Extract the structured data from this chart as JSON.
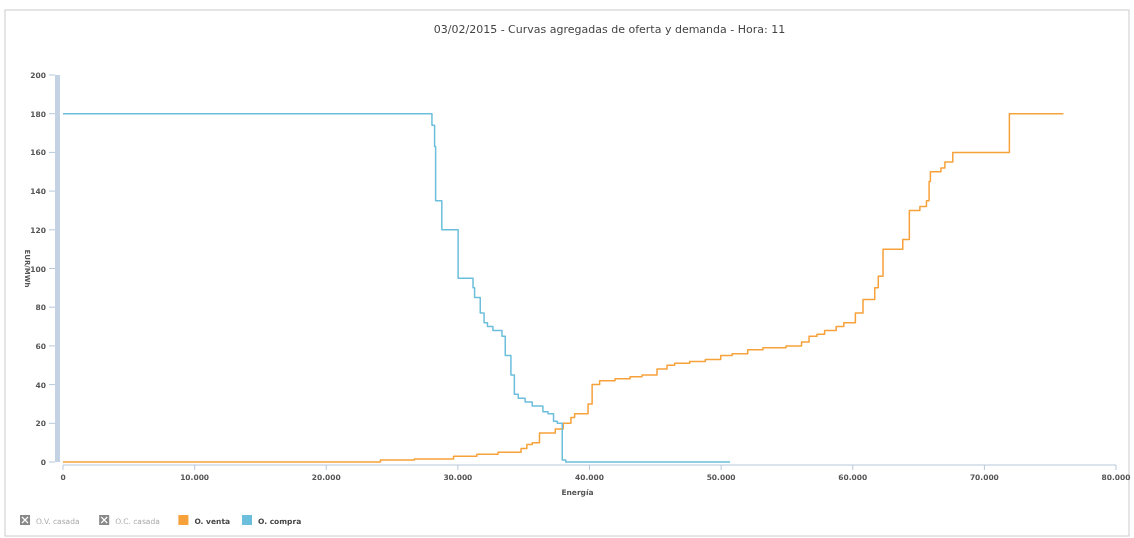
{
  "chart_data": {
    "type": "step",
    "title": "03/02/2015 - Curvas agregadas de oferta y demanda - Hora: 11",
    "xlabel": "Energía",
    "ylabel": "EUR/MWh",
    "xlim": [
      0,
      80000
    ],
    "xticks": [
      {
        "value": 0,
        "label": "0"
      },
      {
        "value": 10000,
        "label": "10.000"
      },
      {
        "value": 20000,
        "label": "20.000"
      },
      {
        "value": 30000,
        "label": "30.000"
      },
      {
        "value": 40000,
        "label": "40.000"
      },
      {
        "value": 50000,
        "label": "50.000"
      },
      {
        "value": 60000,
        "label": "60.000"
      },
      {
        "value": 70000,
        "label": "70.000"
      },
      {
        "value": 80000,
        "label": "80.000"
      }
    ],
    "ylim": [
      0,
      200
    ],
    "yticks": [
      0,
      20,
      40,
      60,
      80,
      100,
      120,
      140,
      160,
      180,
      200
    ],
    "grid": false,
    "legend": "bottom left",
    "line_style": "solid",
    "marker": "none",
    "series": [
      {
        "name": "O.V. casada",
        "color": "#888888"
      },
      {
        "name": "O.C. casada",
        "color": "#888888"
      },
      {
        "name": "O. venta",
        "color": "#f7a13a",
        "x": [
          0,
          24120,
          26700,
          29670,
          31440,
          33050,
          34800,
          35240,
          35650,
          36200,
          37400,
          38000,
          38590,
          38870,
          39890,
          40200,
          40770,
          41940,
          43080,
          43990,
          45130,
          45890,
          46470,
          47610,
          48800,
          49970,
          50840,
          52020,
          53180,
          54930,
          56110,
          56680,
          57280,
          57860,
          58740,
          59320,
          60200,
          60780,
          61670,
          61940,
          62300,
          63800,
          64300,
          65100,
          65600,
          65800,
          65900,
          66700,
          67000,
          67600,
          71900,
          76000
        ],
        "values": [
          0,
          1,
          1.5,
          3,
          4,
          5,
          7,
          9,
          10,
          15,
          17,
          20,
          23,
          25,
          30,
          40,
          42,
          43,
          44,
          45,
          48,
          50,
          51,
          52,
          53,
          55,
          56,
          58,
          59,
          60,
          62,
          65,
          66,
          68,
          70,
          72,
          77,
          84,
          90,
          96,
          110,
          115,
          130,
          132,
          135,
          145,
          150,
          152,
          155,
          160,
          180,
          180
        ]
      },
      {
        "name": "O. compra",
        "color": "#6cbfdc",
        "x": [
          0,
          28030,
          28230,
          28310,
          28780,
          30020,
          31150,
          31270,
          31700,
          31990,
          32250,
          32660,
          33350,
          33600,
          34030,
          34290,
          34590,
          35110,
          35650,
          36460,
          36850,
          37270,
          37550,
          37930,
          38200,
          50680
        ],
        "values": [
          180,
          174,
          163,
          135,
          120,
          95,
          90,
          85,
          77,
          72,
          70,
          68,
          65,
          55,
          45,
          35,
          33,
          31,
          29,
          26,
          25,
          21,
          20,
          1,
          0,
          0
        ]
      }
    ]
  }
}
